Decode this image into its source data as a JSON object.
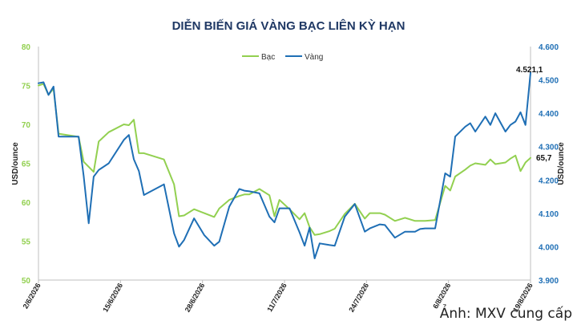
{
  "chart_data": {
    "type": "line",
    "title": "DIỄN BIẾN GIÁ VÀNG BẠC LIÊN KỲ HẠN",
    "ylabel_left": "USD/ounce",
    "ylabel_right": "USD/ounce",
    "ylim_left": [
      50,
      80
    ],
    "ylim_right": [
      3900,
      4600
    ],
    "yticks_left": [
      "50",
      "55",
      "60",
      "65",
      "70",
      "75",
      "80"
    ],
    "yticks_right": [
      "3.900",
      "4.000",
      "4.100",
      "4.200",
      "4.300",
      "4.400",
      "4.500",
      "4.600"
    ],
    "xticks": [
      "2/6/2026",
      "15/6/2026",
      "28/6/2026",
      "11/7/2026",
      "24/7/2026",
      "6/8/2026",
      "19/8/2026"
    ],
    "legend_position": "top-center",
    "series": [
      {
        "name": "Bạc",
        "axis": "left",
        "color": "#92d050",
        "x": [
          0,
          1,
          2,
          3,
          4,
          8,
          9,
          11,
          12,
          14,
          17,
          18,
          19,
          20,
          21,
          25,
          27,
          28,
          29,
          31,
          33,
          35,
          36,
          38,
          40,
          41,
          42,
          44,
          46,
          47,
          48,
          50,
          52,
          53,
          54,
          55,
          56,
          58,
          59,
          61,
          63,
          65,
          66,
          68,
          69,
          71,
          73,
          75,
          76,
          77,
          79,
          81,
          82,
          83,
          85,
          86,
          87,
          89,
          90,
          91,
          93,
          94,
          95,
          96,
          97,
          98
        ],
        "values": [
          75,
          75.2,
          73.8,
          74.6,
          68.8,
          68.4,
          65.2,
          63.9,
          67.8,
          69,
          70,
          69.9,
          70.6,
          66.3,
          66.3,
          65.5,
          62.3,
          58.2,
          58.3,
          59.1,
          58.6,
          58.1,
          59.2,
          60.3,
          60.8,
          61,
          61,
          61.7,
          60.9,
          58.2,
          60.3,
          59.1,
          57.8,
          58.6,
          56.8,
          55.8,
          55.9,
          56.3,
          56.6,
          58.5,
          59.8,
          57.9,
          58.6,
          58.6,
          58.4,
          57.6,
          58,
          57.6,
          57.6,
          57.6,
          57.7,
          62.1,
          61.5,
          63.3,
          64.2,
          64.7,
          65,
          64.8,
          65.5,
          64.9,
          65.1,
          65.6,
          66,
          64,
          65.1,
          65.7
        ]
      },
      {
        "name": "Vàng",
        "axis": "left_scaled_right",
        "color": "#1f6fb5",
        "x": [
          0,
          1,
          2,
          3,
          4,
          8,
          9,
          10,
          11,
          12,
          14,
          17,
          18,
          19,
          20,
          21,
          25,
          27,
          28,
          29,
          31,
          33,
          35,
          36,
          38,
          40,
          41,
          42,
          44,
          46,
          47,
          48,
          50,
          52,
          53,
          54,
          55,
          56,
          58,
          59,
          61,
          63,
          65,
          66,
          68,
          69,
          71,
          73,
          75,
          76,
          77,
          79,
          81,
          82,
          83,
          85,
          86,
          87,
          89,
          90,
          91,
          93,
          94,
          95,
          96,
          97,
          98
        ],
        "values": [
          4490,
          4493,
          4455,
          4480,
          4330,
          4330,
          4212,
          4070,
          4210,
          4230,
          4250,
          4320,
          4335,
          4262,
          4227,
          4155,
          4187,
          4040,
          4000,
          4020,
          4085,
          4035,
          4003,
          4015,
          4120,
          4173,
          4168,
          4166,
          4160,
          4090,
          4073,
          4115,
          4115,
          4043,
          4003,
          4057,
          3965,
          4010,
          4005,
          4003,
          4090,
          4128,
          4045,
          4055,
          4067,
          4065,
          4027,
          4045,
          4045,
          4053,
          4055,
          4055,
          4220,
          4210,
          4330,
          4360,
          4370,
          4345,
          4390,
          4365,
          4400,
          4345,
          4365,
          4375,
          4403,
          4365,
          4521.1
        ]
      }
    ],
    "annotations": [
      "4.521,1",
      "65,7"
    ]
  },
  "credit": "Ảnh: MXV cung cấp"
}
